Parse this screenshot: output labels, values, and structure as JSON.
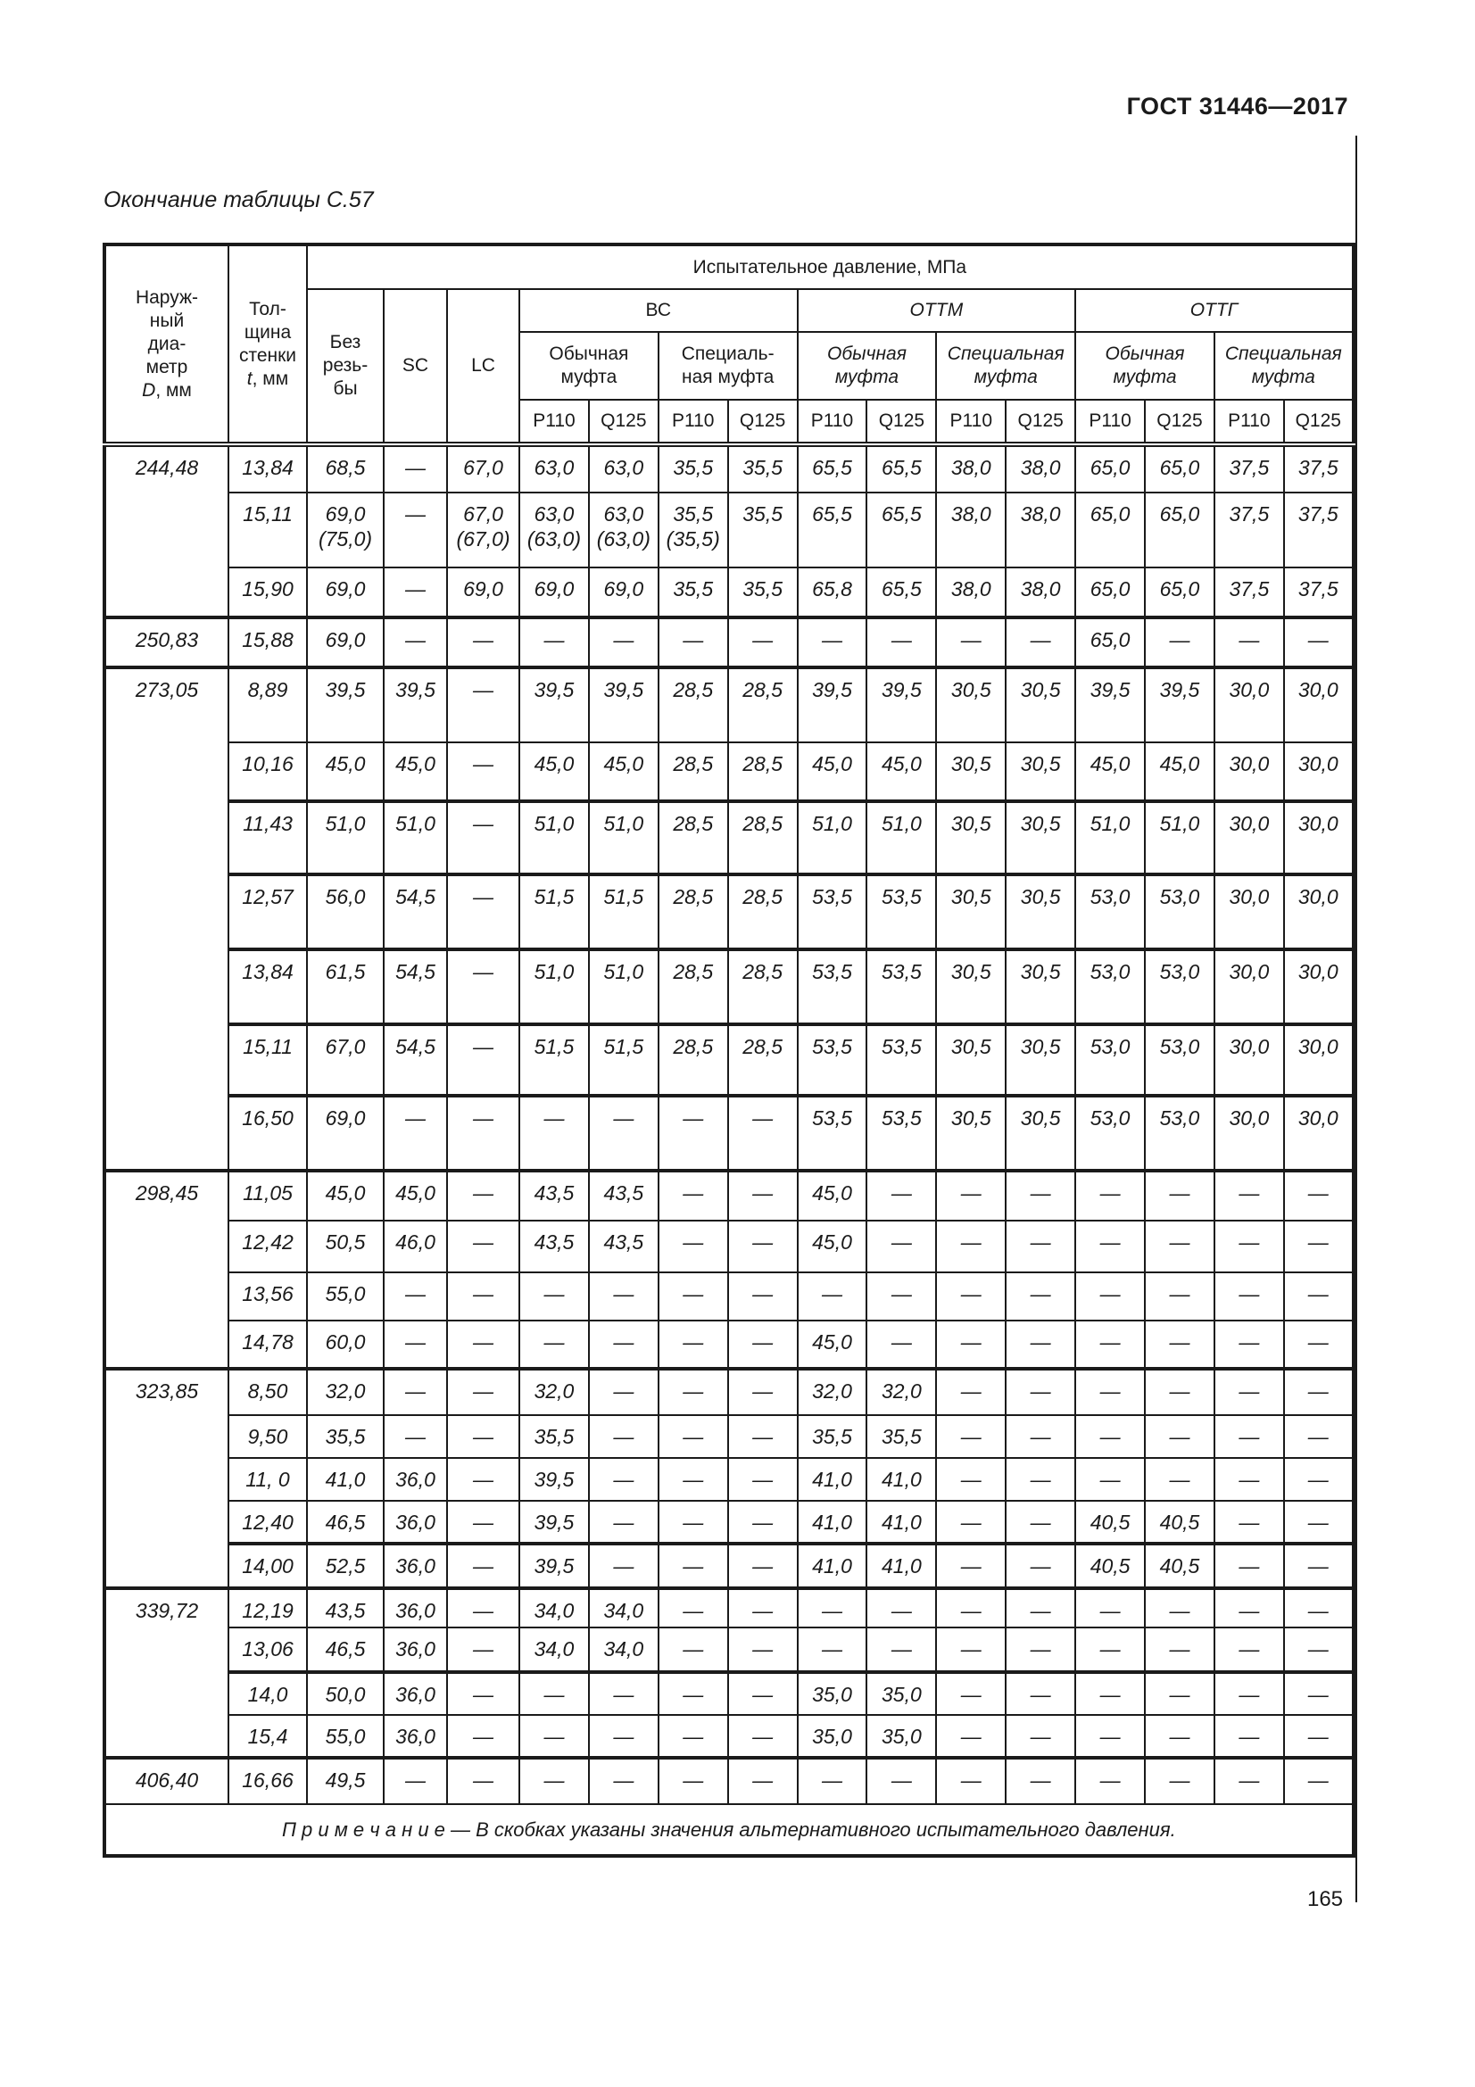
{
  "page": {
    "doc_title": "ГОСТ 31446—2017",
    "table_caption": "Окончание таблицы С.57",
    "page_number": "165"
  },
  "table": {
    "pressure_title": "Испытательное давление, МПа",
    "header": {
      "col_outer_diameter": {
        "lines": "Наруж-\nный\nдиа-\nметр",
        "symbol": "D",
        "unit": ", мм"
      },
      "col_wall_thickness": {
        "lines": "Тол-\nщина\nстенки",
        "symbol": "t",
        "unit": ", мм"
      },
      "col_no_thread": "Без\nрезь-\nбы",
      "col_sc": "SC",
      "col_lc": "LC",
      "groups": [
        {
          "label": "ВС",
          "sub": [
            "Обычная\nмуфта",
            "Специаль-\nная муфта"
          ]
        },
        {
          "label": "ОТТМ",
          "sub": [
            "Обычная\nмуфта",
            "Специальная\nмуфта"
          ]
        },
        {
          "label": "ОТТГ",
          "sub": [
            "Обычная\nмуфта",
            "Специальная\nмуфта"
          ]
        }
      ],
      "grades": [
        "P110",
        "Q125"
      ]
    },
    "rows": [
      {
        "d": "244,48",
        "dspan": 3,
        "t": "13,84",
        "v": [
          "68,5",
          "—",
          "67,0",
          "63,0",
          "63,0",
          "35,5",
          "35,5",
          "65,5",
          "65,5",
          "38,0",
          "38,0",
          "65,0",
          "65,0",
          "37,5",
          "37,5"
        ]
      },
      {
        "t": "15,11",
        "v": [
          "69,0\n(75,0)",
          "—",
          "67,0\n(67,0)",
          "63,0\n(63,0)",
          "63,0\n(63,0)",
          "35,5\n(35,5)",
          "35,5",
          "65,5",
          "65,5",
          "38,0",
          "38,0",
          "65,0",
          "65,0",
          "37,5",
          "37,5"
        ]
      },
      {
        "t": "15,90",
        "v": [
          "69,0",
          "—",
          "69,0",
          "69,0",
          "69,0",
          "35,5",
          "35,5",
          "65,8",
          "65,5",
          "38,0",
          "38,0",
          "65,0",
          "65,0",
          "37,5",
          "37,5"
        ]
      },
      {
        "d": "250,83",
        "dspan": 1,
        "t": "15,88",
        "v": [
          "69,0",
          "—",
          "—",
          "—",
          "—",
          "—",
          "—",
          "—",
          "—",
          "—",
          "—",
          "65,0",
          "—",
          "—",
          "—"
        ]
      },
      {
        "d": "273,05",
        "dspan": 7,
        "t": "8,89",
        "v": [
          "39,5",
          "39,5",
          "—",
          "39,5",
          "39,5",
          "28,5",
          "28,5",
          "39,5",
          "39,5",
          "30,5",
          "30,5",
          "39,5",
          "39,5",
          "30,0",
          "30,0"
        ]
      },
      {
        "t": "10,16",
        "v": [
          "45,0",
          "45,0",
          "—",
          "45,0",
          "45,0",
          "28,5",
          "28,5",
          "45,0",
          "45,0",
          "30,5",
          "30,5",
          "45,0",
          "45,0",
          "30,0",
          "30,0"
        ]
      },
      {
        "t": "11,43",
        "v": [
          "51,0",
          "51,0",
          "—",
          "51,0",
          "51,0",
          "28,5",
          "28,5",
          "51,0",
          "51,0",
          "30,5",
          "30,5",
          "51,0",
          "51,0",
          "30,0",
          "30,0"
        ]
      },
      {
        "t": "12,57",
        "v": [
          "56,0",
          "54,5",
          "—",
          "51,5",
          "51,5",
          "28,5",
          "28,5",
          "53,5",
          "53,5",
          "30,5",
          "30,5",
          "53,0",
          "53,0",
          "30,0",
          "30,0"
        ]
      },
      {
        "t": "13,84",
        "v": [
          "61,5",
          "54,5",
          "—",
          "51,0",
          "51,0",
          "28,5",
          "28,5",
          "53,5",
          "53,5",
          "30,5",
          "30,5",
          "53,0",
          "53,0",
          "30,0",
          "30,0"
        ]
      },
      {
        "t": "15,11",
        "v": [
          "67,0",
          "54,5",
          "—",
          "51,5",
          "51,5",
          "28,5",
          "28,5",
          "53,5",
          "53,5",
          "30,5",
          "30,5",
          "53,0",
          "53,0",
          "30,0",
          "30,0"
        ]
      },
      {
        "t": "16,50",
        "v": [
          "69,0",
          "—",
          "—",
          "—",
          "—",
          "—",
          "—",
          "53,5",
          "53,5",
          "30,5",
          "30,5",
          "53,0",
          "53,0",
          "30,0",
          "30,0"
        ]
      },
      {
        "d": "298,45",
        "dspan": 4,
        "t": "11,05",
        "v": [
          "45,0",
          "45,0",
          "—",
          "43,5",
          "43,5",
          "—",
          "—",
          "45,0",
          "—",
          "—",
          "—",
          "—",
          "—",
          "—",
          "—"
        ]
      },
      {
        "t": "12,42",
        "v": [
          "50,5",
          "46,0",
          "—",
          "43,5",
          "43,5",
          "—",
          "—",
          "45,0",
          "—",
          "—",
          "—",
          "—",
          "—",
          "—",
          "—"
        ]
      },
      {
        "t": "13,56",
        "v": [
          "55,0",
          "—",
          "—",
          "—",
          "—",
          "—",
          "—",
          "—",
          "—",
          "—",
          "—",
          "—",
          "—",
          "—",
          "—"
        ]
      },
      {
        "t": "14,78",
        "v": [
          "60,0",
          "—",
          "—",
          "—",
          "—",
          "—",
          "—",
          "45,0",
          "—",
          "—",
          "—",
          "—",
          "—",
          "—",
          "—"
        ]
      },
      {
        "d": "323,85",
        "dspan": 5,
        "t": "8,50",
        "v": [
          "32,0",
          "—",
          "—",
          "32,0",
          "—",
          "—",
          "—",
          "32,0",
          "32,0",
          "—",
          "—",
          "—",
          "—",
          "—",
          "—"
        ]
      },
      {
        "t": "9,50",
        "v": [
          "35,5",
          "—",
          "—",
          "35,5",
          "—",
          "—",
          "—",
          "35,5",
          "35,5",
          "—",
          "—",
          "—",
          "—",
          "—",
          "—"
        ]
      },
      {
        "t": "11, 0",
        "v": [
          "41,0",
          "36,0",
          "—",
          "39,5",
          "—",
          "—",
          "—",
          "41,0",
          "41,0",
          "—",
          "—",
          "—",
          "—",
          "—",
          "—"
        ]
      },
      {
        "t": "12,40",
        "v": [
          "46,5",
          "36,0",
          "—",
          "39,5",
          "—",
          "—",
          "—",
          "41,0",
          "41,0",
          "—",
          "—",
          "40,5",
          "40,5",
          "—",
          "—"
        ]
      },
      {
        "t": "14,00",
        "v": [
          "52,5",
          "36,0",
          "—",
          "39,5",
          "—",
          "—",
          "—",
          "41,0",
          "41,0",
          "—",
          "—",
          "40,5",
          "40,5",
          "—",
          "—"
        ]
      },
      {
        "d": "339,72",
        "dspan": 4,
        "t": "12,19",
        "v": [
          "43,5",
          "36,0",
          "—",
          "34,0",
          "34,0",
          "—",
          "—",
          "—",
          "—",
          "—",
          "—",
          "—",
          "—",
          "—",
          "—"
        ]
      },
      {
        "t": "13,06",
        "v": [
          "46,5",
          "36,0",
          "—",
          "34,0",
          "34,0",
          "—",
          "—",
          "—",
          "—",
          "—",
          "—",
          "—",
          "—",
          "—",
          "—"
        ]
      },
      {
        "t": "14,0",
        "v": [
          "50,0",
          "36,0",
          "—",
          "—",
          "—",
          "—",
          "—",
          "35,0",
          "35,0",
          "—",
          "—",
          "—",
          "—",
          "—",
          "—"
        ]
      },
      {
        "t": "15,4",
        "v": [
          "55,0",
          "36,0",
          "—",
          "—",
          "—",
          "—",
          "—",
          "35,0",
          "35,0",
          "—",
          "—",
          "—",
          "—",
          "—",
          "—"
        ]
      },
      {
        "d": "406,40",
        "dspan": 1,
        "t": "16,66",
        "v": [
          "49,5",
          "—",
          "—",
          "—",
          "—",
          "—",
          "—",
          "—",
          "—",
          "—",
          "—",
          "—",
          "—",
          "—",
          "—"
        ]
      }
    ],
    "note": "П р и м е ч а н и е — В скобках указаны значения альтернативного испытательного давления."
  }
}
